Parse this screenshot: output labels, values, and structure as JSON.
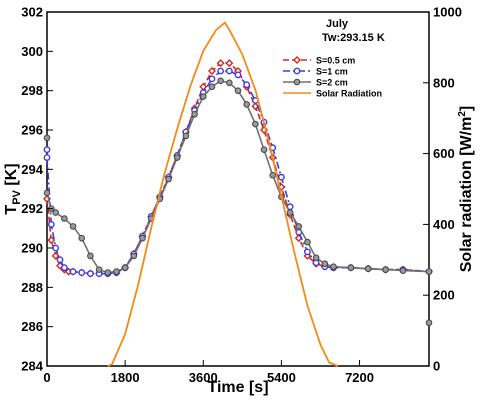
{
  "chart_data": {
    "type": "line",
    "annotation": {
      "line1": "July",
      "line2": "Tw:293.15 K"
    },
    "xlabel": "Time [s]",
    "ylabel_left": {
      "base": "T",
      "sub": "PV",
      "unit": " [K]"
    },
    "ylabel_right": {
      "text": "Solar radiation [W/m",
      "sup": "2",
      "close": "]"
    },
    "xlim": [
      0,
      8800
    ],
    "ylim_left": [
      284,
      302
    ],
    "ylim_right": [
      0,
      1000
    ],
    "xticks": [
      0,
      1800,
      3600,
      5400,
      7200
    ],
    "yticks_left": [
      284,
      286,
      288,
      290,
      292,
      294,
      296,
      298,
      300,
      302
    ],
    "yticks_right": [
      0,
      200,
      400,
      600,
      800,
      1000
    ],
    "grid": false,
    "legend_position": "top-right",
    "colors": {
      "s05": "#d9261c",
      "s1": "#3a3ae0",
      "s2": "#707070",
      "solar": "#f28a1a"
    },
    "series": [
      {
        "name": "S=0.5  cm",
        "axis": "left",
        "style": "dashed-diamond",
        "x": [
          0,
          100,
          200,
          300,
          400,
          500,
          600,
          800,
          1000,
          1200,
          1400,
          1600,
          1800,
          2000,
          2200,
          2400,
          2600,
          2800,
          3000,
          3200,
          3400,
          3600,
          3800,
          4000,
          4200,
          4400,
          4600,
          4800,
          5000,
          5200,
          5400,
          5600,
          5800,
          6000,
          6200,
          6400,
          6600,
          7000,
          7400,
          7800,
          8200,
          8800
        ],
        "y": [
          292.5,
          290.4,
          289.6,
          289.1,
          288.9,
          288.8,
          288.8,
          288.75,
          288.7,
          288.7,
          288.7,
          288.75,
          289.0,
          289.7,
          290.6,
          291.6,
          292.6,
          293.6,
          294.7,
          295.9,
          297.1,
          298.2,
          299.0,
          299.4,
          299.4,
          299.0,
          298.2,
          297.2,
          296.0,
          294.6,
          293.1,
          291.7,
          290.5,
          289.6,
          289.2,
          289.05,
          289.0,
          289.0,
          288.95,
          288.9,
          288.9,
          288.8
        ]
      },
      {
        "name": "S=1  cm",
        "axis": "left",
        "style": "dashdot-circle",
        "x": [
          0,
          100,
          200,
          300,
          400,
          600,
          800,
          1000,
          1200,
          1400,
          1600,
          1800,
          2000,
          2200,
          2400,
          2600,
          2800,
          3000,
          3200,
          3400,
          3600,
          3800,
          4000,
          4200,
          4400,
          4600,
          4800,
          5000,
          5200,
          5400,
          5600,
          5800,
          6000,
          6200,
          6400,
          6600,
          7000,
          7400,
          7800,
          8200,
          8800
        ],
        "y": [
          294.6,
          291.2,
          290.0,
          289.4,
          289.0,
          288.8,
          288.75,
          288.7,
          288.7,
          288.7,
          288.75,
          289.0,
          289.7,
          290.6,
          291.6,
          292.6,
          293.6,
          294.7,
          295.9,
          297.0,
          297.9,
          298.6,
          299.0,
          299.0,
          298.8,
          298.3,
          297.5,
          296.4,
          295.1,
          293.6,
          292.1,
          290.8,
          289.8,
          289.25,
          289.05,
          289.0,
          289.0,
          288.95,
          288.9,
          288.9,
          288.8
        ]
      },
      {
        "name": "S=2  cm",
        "axis": "left",
        "style": "solid-circle",
        "x": [
          0,
          100,
          200,
          400,
          600,
          800,
          1000,
          1200,
          1400,
          1600,
          1800,
          2000,
          2200,
          2400,
          2600,
          2800,
          3000,
          3200,
          3400,
          3600,
          3800,
          4000,
          4200,
          4400,
          4600,
          4800,
          5000,
          5200,
          5400,
          5600,
          5800,
          6000,
          6200,
          6400,
          6600,
          7000,
          7400,
          7800,
          8200,
          8800
        ],
        "y": [
          292.8,
          292.0,
          291.8,
          291.5,
          291.1,
          290.5,
          289.6,
          288.9,
          288.75,
          288.8,
          289.0,
          289.6,
          290.5,
          291.5,
          292.5,
          293.5,
          294.6,
          295.7,
          296.8,
          297.7,
          298.2,
          298.5,
          298.4,
          298.0,
          297.3,
          296.3,
          295.0,
          293.7,
          292.6,
          291.8,
          291.1,
          290.3,
          289.5,
          289.2,
          289.05,
          289.0,
          288.95,
          288.9,
          288.85,
          288.8
        ]
      },
      {
        "name": "Solar Radiation",
        "axis": "right",
        "style": "solid",
        "x": [
          1400,
          1500,
          1800,
          2100,
          2400,
          2700,
          3000,
          3300,
          3600,
          3900,
          4100,
          4200,
          4500,
          4800,
          5100,
          5400,
          5700,
          6000,
          6300,
          6500,
          6700
        ],
        "y": [
          0,
          5,
          90,
          230,
          390,
          540,
          670,
          790,
          890,
          950,
          970,
          950,
          880,
          780,
          640,
          480,
          320,
          170,
          60,
          10,
          0
        ]
      }
    ],
    "extra_points": [
      {
        "series": "S=2  cm",
        "x": 0,
        "y": 295.6
      },
      {
        "series": "S=1  cm",
        "x": 0,
        "y": 295.0
      },
      {
        "series": "S=2  cm",
        "x": 8800,
        "y": 286.2
      }
    ]
  }
}
